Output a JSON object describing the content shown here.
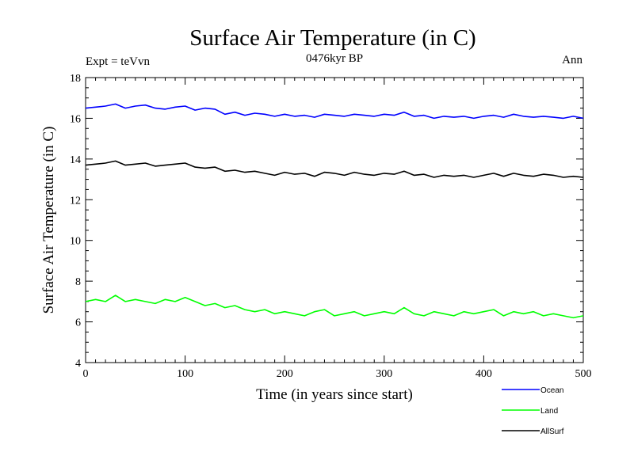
{
  "chart_data": {
    "type": "line",
    "title": "Surface Air Temperature (in C)",
    "subtitle": "0476kyr BP",
    "left_label": "Expt = teVvn",
    "right_label": "Ann",
    "xlabel": "Time (in years since start)",
    "ylabel": "Surface Air Temperature (in C)",
    "xlim": [
      0,
      500
    ],
    "ylim": [
      4,
      18
    ],
    "x_ticks": [
      0,
      100,
      200,
      300,
      400,
      500
    ],
    "y_ticks": [
      4,
      6,
      8,
      10,
      12,
      14,
      16,
      18
    ],
    "grid": false,
    "legend_position": "bottom-right",
    "series": [
      {
        "name": "Ocean",
        "color": "#0000ff",
        "x": [
          0,
          10,
          20,
          30,
          40,
          50,
          60,
          70,
          80,
          90,
          100,
          110,
          120,
          130,
          140,
          150,
          160,
          170,
          180,
          190,
          200,
          210,
          220,
          230,
          240,
          250,
          260,
          270,
          280,
          290,
          300,
          310,
          320,
          330,
          340,
          350,
          360,
          370,
          380,
          390,
          400,
          410,
          420,
          430,
          440,
          450,
          460,
          470,
          480,
          490,
          500
        ],
        "values": [
          16.5,
          16.55,
          16.6,
          16.7,
          16.5,
          16.6,
          16.65,
          16.5,
          16.45,
          16.55,
          16.6,
          16.4,
          16.5,
          16.45,
          16.2,
          16.3,
          16.15,
          16.25,
          16.2,
          16.1,
          16.2,
          16.1,
          16.15,
          16.05,
          16.2,
          16.15,
          16.1,
          16.2,
          16.15,
          16.1,
          16.2,
          16.15,
          16.3,
          16.1,
          16.15,
          16.0,
          16.1,
          16.05,
          16.1,
          16.0,
          16.1,
          16.15,
          16.05,
          16.2,
          16.1,
          16.05,
          16.1,
          16.05,
          16.0,
          16.1,
          16.0
        ]
      },
      {
        "name": "Land",
        "color": "#00ff00",
        "x": [
          0,
          10,
          20,
          30,
          40,
          50,
          60,
          70,
          80,
          90,
          100,
          110,
          120,
          130,
          140,
          150,
          160,
          170,
          180,
          190,
          200,
          210,
          220,
          230,
          240,
          250,
          260,
          270,
          280,
          290,
          300,
          310,
          320,
          330,
          340,
          350,
          360,
          370,
          380,
          390,
          400,
          410,
          420,
          430,
          440,
          450,
          460,
          470,
          480,
          490,
          500
        ],
        "values": [
          7.0,
          7.1,
          7.0,
          7.3,
          7.0,
          7.1,
          7.0,
          6.9,
          7.1,
          7.0,
          7.2,
          7.0,
          6.8,
          6.9,
          6.7,
          6.8,
          6.6,
          6.5,
          6.6,
          6.4,
          6.5,
          6.4,
          6.3,
          6.5,
          6.6,
          6.3,
          6.4,
          6.5,
          6.3,
          6.4,
          6.5,
          6.4,
          6.7,
          6.4,
          6.3,
          6.5,
          6.4,
          6.3,
          6.5,
          6.4,
          6.5,
          6.6,
          6.3,
          6.5,
          6.4,
          6.5,
          6.3,
          6.4,
          6.3,
          6.2,
          6.3
        ]
      },
      {
        "name": "AllSurf",
        "color": "#000000",
        "x": [
          0,
          10,
          20,
          30,
          40,
          50,
          60,
          70,
          80,
          90,
          100,
          110,
          120,
          130,
          140,
          150,
          160,
          170,
          180,
          190,
          200,
          210,
          220,
          230,
          240,
          250,
          260,
          270,
          280,
          290,
          300,
          310,
          320,
          330,
          340,
          350,
          360,
          370,
          380,
          390,
          400,
          410,
          420,
          430,
          440,
          450,
          460,
          470,
          480,
          490,
          500
        ],
        "values": [
          13.7,
          13.75,
          13.8,
          13.9,
          13.7,
          13.75,
          13.8,
          13.65,
          13.7,
          13.75,
          13.8,
          13.6,
          13.55,
          13.6,
          13.4,
          13.45,
          13.35,
          13.4,
          13.3,
          13.2,
          13.35,
          13.25,
          13.3,
          13.15,
          13.35,
          13.3,
          13.2,
          13.35,
          13.25,
          13.2,
          13.3,
          13.25,
          13.4,
          13.2,
          13.25,
          13.1,
          13.2,
          13.15,
          13.2,
          13.1,
          13.2,
          13.3,
          13.15,
          13.3,
          13.2,
          13.15,
          13.25,
          13.2,
          13.1,
          13.15,
          13.1
        ]
      }
    ]
  }
}
